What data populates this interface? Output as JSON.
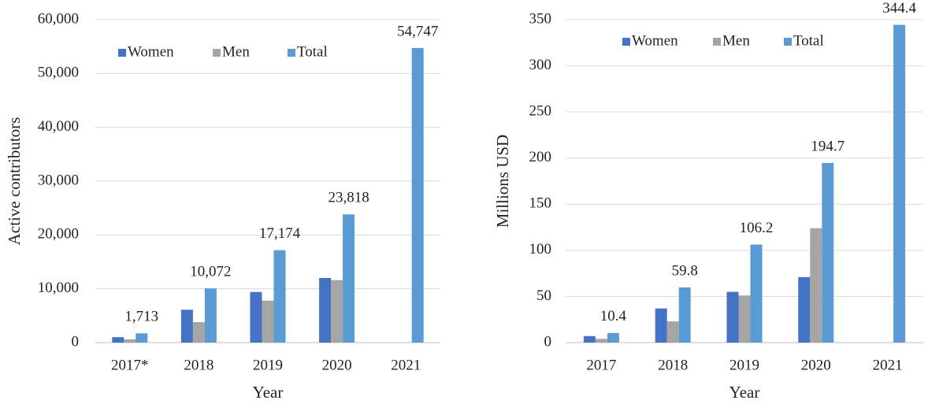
{
  "chart_data": [
    {
      "type": "bar",
      "categories": [
        "2017*",
        "2018",
        "2019",
        "2020",
        "2021"
      ],
      "series": [
        {
          "name": "Women",
          "color": "#4472c4",
          "values": [
            1000,
            6100,
            9400,
            12000,
            null
          ]
        },
        {
          "name": "Men",
          "color": "#a5a5a5",
          "values": [
            600,
            3800,
            7800,
            11600,
            null
          ]
        },
        {
          "name": "Total",
          "color": "#5b9bd5",
          "values": [
            1713,
            10072,
            17174,
            23818,
            54747
          ],
          "value_labels": [
            "1,713",
            "10,072",
            "17,174",
            "23,818",
            "54,747"
          ]
        }
      ],
      "ylim": [
        0,
        60000
      ],
      "yticks": [
        0,
        {
          "value": 10000,
          "label": "10,000"
        },
        {
          "value": 20000,
          "label": "20,000"
        },
        {
          "value": 30000,
          "label": "30,000"
        },
        {
          "value": 40000,
          "label": "40,000"
        },
        {
          "value": 50000,
          "label": "50,000"
        },
        {
          "value": 60000,
          "label": "60,000"
        }
      ],
      "xlabel": "Year",
      "ylabel": "Active contributors",
      "grid": true,
      "legend": "top-left"
    },
    {
      "type": "bar",
      "categories": [
        "2017",
        "2018",
        "2019",
        "2020",
        "2021"
      ],
      "series": [
        {
          "name": "Women",
          "color": "#4472c4",
          "values": [
            7,
            37,
            55,
            71,
            null
          ]
        },
        {
          "name": "Men",
          "color": "#a5a5a5",
          "values": [
            4,
            23,
            51,
            124,
            null
          ]
        },
        {
          "name": "Total",
          "color": "#5b9bd5",
          "values": [
            10.4,
            59.8,
            106.2,
            194.7,
            344.4
          ],
          "value_labels": [
            "10.4",
            "59.8",
            "106.2",
            "194.7",
            "344.4"
          ]
        }
      ],
      "ylim": [
        0,
        350
      ],
      "yticks": [
        0,
        50,
        100,
        150,
        200,
        250,
        300,
        350
      ],
      "xlabel": "Year",
      "ylabel": "Millions USD",
      "grid": true,
      "legend": "top-left"
    }
  ]
}
